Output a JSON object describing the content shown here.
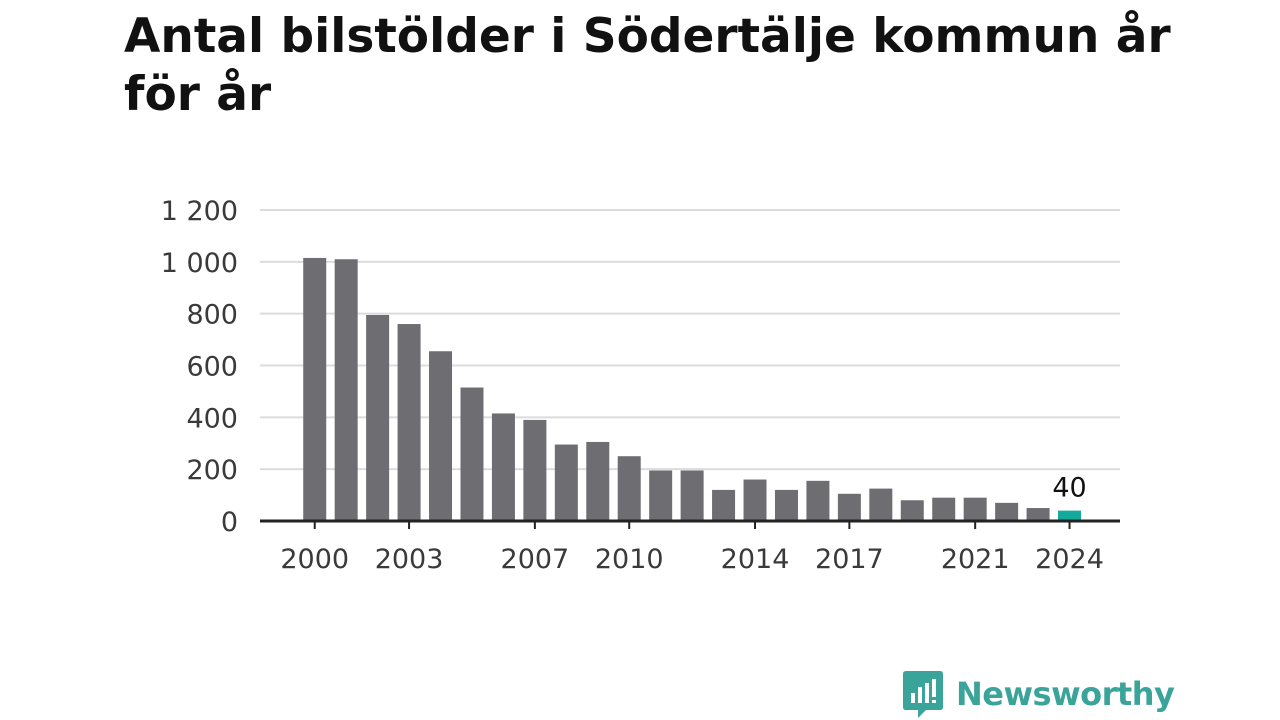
{
  "title": "Antal bilstölder i Södertälje kommun år för år",
  "brand": {
    "name": "Newsworthy",
    "color": "#3aa39a",
    "icon": "chat-bar-chart-icon"
  },
  "colors": {
    "bar": "#6e6d72",
    "highlight": "#13a99d",
    "grid": "#dcdcdc",
    "axis": "#222222"
  },
  "chart_data": {
    "type": "bar",
    "title": "Antal bilstölder i Södertälje kommun år för år",
    "xlabel": "",
    "ylabel": "",
    "categories": [
      2000,
      2001,
      2002,
      2003,
      2004,
      2005,
      2006,
      2007,
      2008,
      2009,
      2010,
      2011,
      2012,
      2013,
      2014,
      2015,
      2016,
      2017,
      2018,
      2019,
      2020,
      2021,
      2022,
      2023,
      2024
    ],
    "values": [
      1015,
      1010,
      795,
      760,
      655,
      515,
      415,
      390,
      295,
      305,
      250,
      195,
      195,
      120,
      160,
      120,
      155,
      105,
      125,
      80,
      90,
      90,
      70,
      50,
      40
    ],
    "x_tick_labels": [
      "2000",
      "2003",
      "2007",
      "2010",
      "2014",
      "2017",
      "2021",
      "2024"
    ],
    "y_ticks": [
      0,
      200,
      400,
      600,
      800,
      1000,
      1200
    ],
    "y_tick_labels": [
      "0",
      "200",
      "400",
      "600",
      "800",
      "1 000",
      "1 200"
    ],
    "ylim": [
      0,
      1200
    ],
    "grid": true,
    "legend": "none",
    "highlight_category": 2024,
    "annotations": [
      {
        "category": 2024,
        "text": "40"
      }
    ]
  }
}
